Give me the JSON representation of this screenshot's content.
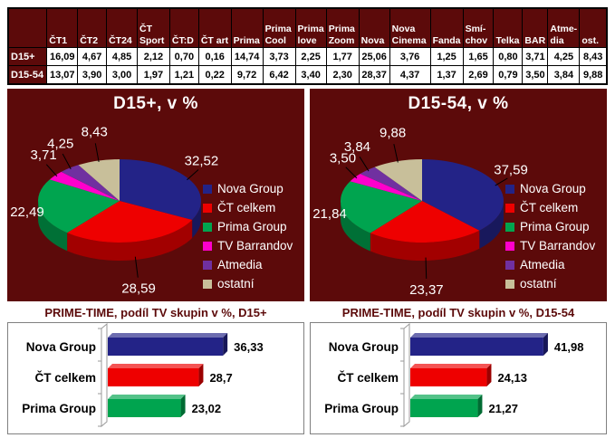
{
  "colors": {
    "panel_background": "#5C0A0A",
    "table_header_bg": "#5C0A0A",
    "table_grid": "#000000",
    "bar_panel_border": "#808080",
    "title_on_dark": "#FFFFFF",
    "bar_title_color": "#5C0A0A",
    "series": {
      "Nova Group": "#232387",
      "ČT celkem": "#EE0000",
      "Prima Group": "#00A44F",
      "TV Barrandov": "#FF00CC",
      "Atmedia": "#7030A0",
      "ostatní": "#C8BF9A"
    }
  },
  "table": {
    "corner_label": "",
    "columns": [
      "ČT1",
      "ČT2",
      "ČT24",
      "ČT Sport",
      "ČT:D",
      "ČT art",
      "Prima",
      "Prima Cool",
      "Prima love",
      "Prima Zoom",
      "Nova",
      "Nova Cinema",
      "Fanda",
      "Smí-chov",
      "Telka",
      "BAR",
      "Atme-dia",
      "ost."
    ],
    "rows": [
      {
        "label": "D15+",
        "values": [
          "16,09",
          "4,67",
          "4,85",
          "2,12",
          "0,70",
          "0,16",
          "14,74",
          "3,73",
          "2,25",
          "1,77",
          "25,06",
          "3,76",
          "1,25",
          "1,65",
          "0,80",
          "3,71",
          "4,25",
          "8,43"
        ]
      },
      {
        "label": "D15-54",
        "values": [
          "13,07",
          "3,90",
          "3,00",
          "1,97",
          "1,21",
          "0,22",
          "9,72",
          "6,42",
          "3,40",
          "2,30",
          "28,37",
          "4,37",
          "1,37",
          "2,69",
          "0,79",
          "3,50",
          "3,84",
          "9,88"
        ]
      }
    ]
  },
  "chart_data": [
    {
      "type": "pie",
      "title": "D15+, v %",
      "labels": [
        "Nova Group",
        "ČT celkem",
        "Prima Group",
        "TV Barrandov",
        "Atmedia",
        "ostatní"
      ],
      "values": [
        32.52,
        28.59,
        22.49,
        3.71,
        4.25,
        8.43
      ],
      "value_labels": [
        "32,52",
        "28,59",
        "22,49",
        "3,71",
        "4,25",
        "8,43"
      ],
      "colors": [
        "#232387",
        "#EE0000",
        "#00A44F",
        "#FF00CC",
        "#7030A0",
        "#C8BF9A"
      ],
      "legend_position": "right",
      "background": "#5C0A0A",
      "style": "3d"
    },
    {
      "type": "pie",
      "title": "D15-54, v %",
      "labels": [
        "Nova Group",
        "ČT celkem",
        "Prima Group",
        "TV Barrandov",
        "Atmedia",
        "ostatní"
      ],
      "values": [
        37.59,
        23.37,
        21.84,
        3.5,
        3.84,
        9.88
      ],
      "value_labels": [
        "37,59",
        "23,37",
        "21,84",
        "3,50",
        "3,84",
        "9,88"
      ],
      "colors": [
        "#232387",
        "#EE0000",
        "#00A44F",
        "#FF00CC",
        "#7030A0",
        "#C8BF9A"
      ],
      "legend_position": "right",
      "background": "#5C0A0A",
      "style": "3d"
    },
    {
      "type": "bar",
      "title": "PRIME-TIME, podíl TV skupin v %, D15+",
      "categories": [
        "Nova Group",
        "ČT celkem",
        "Prima Group"
      ],
      "values": [
        36.33,
        28.7,
        23.02
      ],
      "value_labels": [
        "36,33",
        "28,7",
        "23,02"
      ],
      "colors": [
        "#232387",
        "#EE0000",
        "#00A44F"
      ],
      "orientation": "horizontal",
      "xlim": [
        0,
        45
      ],
      "grid": false,
      "style": "3d"
    },
    {
      "type": "bar",
      "title": "PRIME-TIME, podíl TV skupin v %, D15-54",
      "categories": [
        "Nova Group",
        "ČT celkem",
        "Prima Group"
      ],
      "values": [
        41.98,
        24.13,
        21.27
      ],
      "value_labels": [
        "41,98",
        "24,13",
        "21,27"
      ],
      "colors": [
        "#232387",
        "#EE0000",
        "#00A44F"
      ],
      "orientation": "horizontal",
      "xlim": [
        0,
        45
      ],
      "grid": false,
      "style": "3d"
    }
  ]
}
